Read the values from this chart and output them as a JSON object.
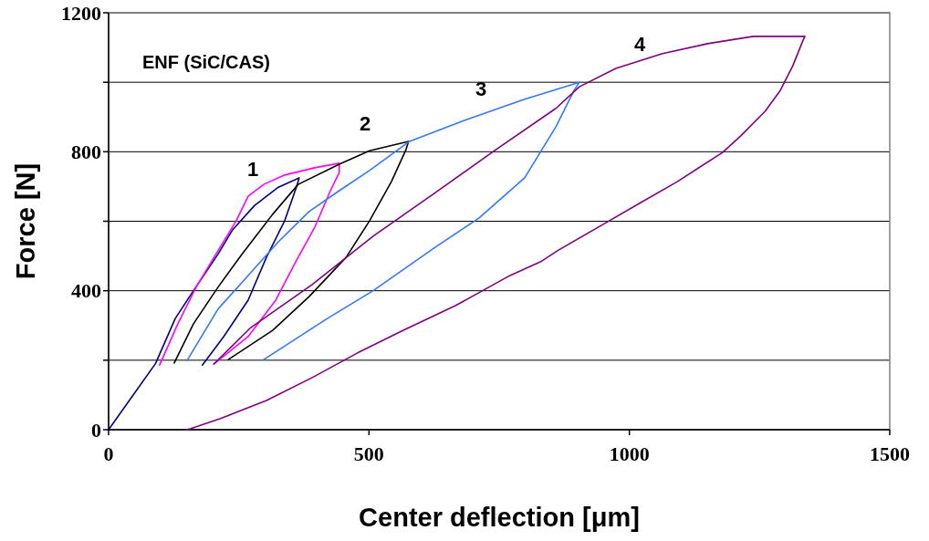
{
  "chart_data": {
    "type": "line",
    "xlabel": "Center deflection [μm]",
    "ylabel": "Force [N]",
    "xlim": [
      0,
      1500
    ],
    "ylim": [
      0,
      1200
    ],
    "xticks": [
      0,
      500,
      1000,
      1500
    ],
    "yticks": [
      0,
      {
        "value": 200,
        "label": null
      },
      400,
      {
        "value": 600,
        "label": null
      },
      800,
      {
        "value": 1000,
        "label": null
      },
      1200
    ],
    "grid": "y",
    "marker": "none",
    "line_style": "solid",
    "annotations": [
      "ENF (SiC/CAS)",
      "1",
      "2",
      "3",
      "4"
    ],
    "series": [
      {
        "color": "#000080",
        "x": [
          0,
          45,
          90,
          128,
          163,
          210,
          238,
          280,
          326,
          366,
          361,
          338,
          303,
          268,
          221,
          180
        ],
        "values": [
          0,
          95,
          190,
          320,
          400,
          505,
          575,
          645,
          698,
          725,
          700,
          601,
          496,
          373,
          268,
          186
        ]
      },
      {
        "color": "#ff00ff",
        "x": [
          98,
          133,
          168,
          210,
          245,
          268,
          298,
          338,
          396,
          443,
          443,
          426,
          396,
          361,
          321,
          268,
          202
        ],
        "values": [
          186,
          305,
          410,
          515,
          601,
          672,
          706,
          733,
          754,
          767,
          741,
          688,
          583,
          488,
          373,
          268,
          189
        ]
      },
      {
        "color": "#000000",
        "x": [
          126,
          163,
          210,
          256,
          315,
          364,
          443,
          501,
          576,
          571,
          543,
          501,
          456,
          385,
          315,
          230
        ],
        "values": [
          192,
          305,
          410,
          505,
          620,
          706,
          764,
          803,
          830,
          806,
          714,
          601,
          496,
          383,
          286,
          202
        ]
      },
      {
        "color": "#3377ff",
        "x": [
          151,
          210,
          268,
          326,
          385,
          443,
          501,
          578,
          683,
          799,
          904,
          894,
          859,
          799,
          711,
          625,
          508,
          420,
          298
        ],
        "values": [
          200,
          347,
          444,
          541,
          628,
          688,
          746,
          830,
          890,
          951,
          1000,
          977,
          872,
          725,
          609,
          523,
          400,
          320,
          202
        ]
      },
      {
        "color": "#800080",
        "x": [
          202,
          273,
          391,
          508,
          625,
          741,
          859,
          904,
          974,
          1062,
          1150,
          1238,
          1337,
          1333,
          1314,
          1290,
          1261,
          1214,
          1179,
          1092,
          1022,
          946,
          864,
          829,
          771,
          666,
          566,
          478,
          391,
          303,
          215,
          158,
          150
        ],
        "values": [
          189,
          294,
          418,
          557,
          680,
          803,
          925,
          987,
          1040,
          1082,
          1111,
          1132,
          1132,
          1119,
          1048,
          977,
          917,
          846,
          798,
          714,
          654,
          588,
          517,
          483,
          444,
          357,
          286,
          221,
          150,
          84,
          32,
          3,
          0
        ]
      }
    ]
  }
}
